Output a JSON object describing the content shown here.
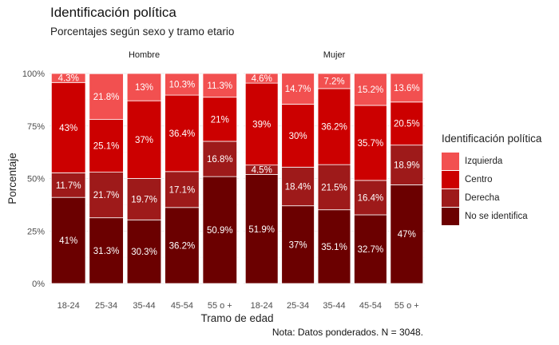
{
  "chart_title": "Identificación política",
  "chart_subtitle": "Porcentajes según sexo y tramo etario",
  "caption": "Nota: Datos ponderados. N = 3048.",
  "chart_data": {
    "type": "bar",
    "stacked": true,
    "title": "Identificación política",
    "subtitle": "Porcentajes según sexo y tramo etario",
    "xlabel": "Tramo de edad",
    "ylabel": "Porcentaje",
    "ylim": [
      0,
      100
    ],
    "yticks": [
      "0%",
      "25%",
      "50%",
      "75%",
      "100%"
    ],
    "ytick_values": [
      0,
      25,
      50,
      75,
      100
    ],
    "grid": true,
    "legend_position": "right",
    "legend_title": "Identificación política",
    "categories": [
      "18-24",
      "25-34",
      "35-44",
      "45-54",
      "55 o +"
    ],
    "facets": [
      {
        "name": "Hombre",
        "series": [
          {
            "name": "No se identifica",
            "values": [
              41,
              31.3,
              30.3,
              36.2,
              50.9
            ],
            "labels": [
              "41%",
              "31.3%",
              "30.3%",
              "36.2%",
              "50.9%"
            ]
          },
          {
            "name": "Derecha",
            "values": [
              11.7,
              21.7,
              19.7,
              17.1,
              16.8
            ],
            "labels": [
              "11.7%",
              "21.7%",
              "19.7%",
              "17.1%",
              "16.8%"
            ]
          },
          {
            "name": "Centro",
            "values": [
              43,
              25.1,
              37,
              36.4,
              21
            ],
            "labels": [
              "43%",
              "25.1%",
              "37%",
              "36.4%",
              "21%"
            ]
          },
          {
            "name": "Izquierda",
            "values": [
              4.3,
              21.8,
              13,
              10.3,
              11.3
            ],
            "labels": [
              "4.3%",
              "21.8%",
              "13%",
              "10.3%",
              "11.3%"
            ]
          }
        ]
      },
      {
        "name": "Mujer",
        "series": [
          {
            "name": "No se identifica",
            "values": [
              51.9,
              37,
              35.1,
              32.7,
              47
            ],
            "labels": [
              "51.9%",
              "37%",
              "35.1%",
              "32.7%",
              "47%"
            ]
          },
          {
            "name": "Derecha",
            "values": [
              4.5,
              18.4,
              21.5,
              16.4,
              18.9
            ],
            "labels": [
              "4.5%",
              "18.4%",
              "21.5%",
              "16.4%",
              "18.9%"
            ]
          },
          {
            "name": "Centro",
            "values": [
              39,
              30,
              36.2,
              35.7,
              20.5
            ],
            "labels": [
              "39%",
              "30%",
              "36.2%",
              "35.7%",
              "20.5%"
            ]
          },
          {
            "name": "Izquierda",
            "values": [
              4.6,
              14.7,
              7.2,
              15.2,
              13.6
            ],
            "labels": [
              "4.6%",
              "14.7%",
              "7.2%",
              "15.2%",
              "13.6%"
            ]
          }
        ]
      }
    ],
    "colors": {
      "Izquierda": "#f25050",
      "Centro": "#cc0000",
      "Derecha": "#9e1a1a",
      "No se identifica": "#6b0000"
    },
    "legend_order": [
      "Izquierda",
      "Centro",
      "Derecha",
      "No se identifica"
    ]
  }
}
